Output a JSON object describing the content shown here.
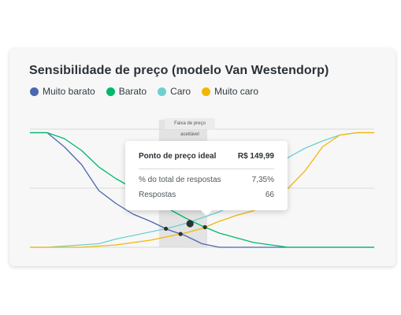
{
  "title": "Sensibilidade de preço (modelo Van Westendorp)",
  "band_label": "Faixa de preço aceitável",
  "tooltip": {
    "title": "Ponto de preço ideal",
    "price": "R$ 149,99",
    "row1_label": "% do total de respostas",
    "row1_value": "7,35%",
    "row2_label": "Respostas",
    "row2_value": "66"
  },
  "chart_data": {
    "type": "line",
    "title": "Sensibilidade de preço (modelo Van Westendorp)",
    "legend_position": "top-left",
    "grid": true,
    "x": [
      0,
      1,
      2,
      3,
      4,
      5,
      6,
      7,
      8,
      9,
      10,
      11,
      12,
      13,
      14,
      15,
      16,
      17,
      18,
      19,
      20
    ],
    "ylim": [
      0,
      100
    ],
    "series": [
      {
        "name": "Muito barato",
        "color": "#4a67b0",
        "values": [
          97,
          97,
          85,
          70,
          48,
          37,
          28,
          22,
          15,
          10,
          3,
          0,
          0,
          0,
          0,
          0,
          0,
          0,
          0,
          0,
          0
        ]
      },
      {
        "name": "Barato",
        "color": "#00b86b",
        "values": [
          97,
          97,
          92,
          82,
          68,
          58,
          50,
          42,
          33,
          25,
          18,
          12,
          8,
          4,
          2,
          0,
          0,
          0,
          0,
          0,
          0
        ]
      },
      {
        "name": "Caro",
        "color": "#6fcfcf",
        "values": [
          0,
          0,
          1,
          2,
          3,
          7,
          10,
          13,
          16,
          20,
          25,
          30,
          37,
          48,
          62,
          76,
          84,
          90,
          95,
          97,
          97
        ]
      },
      {
        "name": "Muito caro",
        "color": "#f2b705",
        "values": [
          0,
          0,
          0,
          0,
          1,
          2,
          4,
          6,
          9,
          12,
          16,
          22,
          27,
          31,
          39,
          50,
          65,
          85,
          95,
          97,
          97
        ]
      }
    ],
    "acceptable_range": [
      7.5,
      10.3
    ],
    "optimal_point": {
      "x": 9.3,
      "y": 20
    }
  },
  "colors": {
    "card_background": "#f7f7f7",
    "band": "#e3e3e3",
    "grid": "#d8d8d8"
  }
}
